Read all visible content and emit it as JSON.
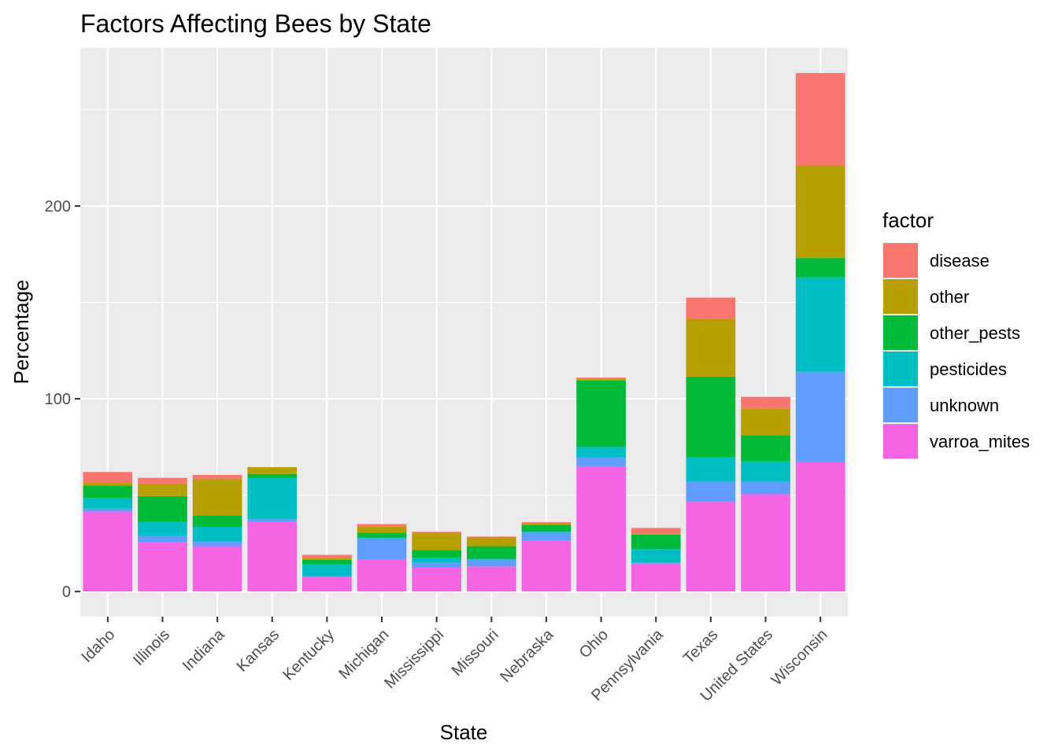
{
  "chart_data": {
    "type": "bar",
    "stacked": true,
    "title": "Factors Affecting Bees by State",
    "xlabel": "State",
    "ylabel": "Percentage",
    "ylim": [
      -13,
      282
    ],
    "yticks": [
      0,
      100,
      200
    ],
    "grid": true,
    "legend_position": "right",
    "legend_title": "factor",
    "legend_order": [
      "disease",
      "other",
      "other_pests",
      "pesticides",
      "unknown",
      "varroa_mites"
    ],
    "stack_order": [
      "varroa_mites",
      "unknown",
      "pesticides",
      "other_pests",
      "other",
      "disease"
    ],
    "colors": {
      "disease": "#F8766D",
      "other": "#B79F00",
      "other_pests": "#00BA38",
      "pesticides": "#00BFC4",
      "unknown": "#619CFF",
      "varroa_mites": "#F564E3",
      "panel_background": "#EBEBEB",
      "grid": "#FFFFFF"
    },
    "categories": [
      "Idaho",
      "Illinois",
      "Indiana",
      "Kansas",
      "Kentucky",
      "Michigan",
      "Mississippi",
      "Missouri",
      "Nebraska",
      "Ohio",
      "Pennsylvania",
      "Texas",
      "United States",
      "Wisconsin"
    ],
    "series": [
      {
        "name": "varroa_mites",
        "values": [
          41.5,
          25.5,
          23.5,
          36,
          7.5,
          16.5,
          12.5,
          13,
          26.5,
          65,
          14.5,
          46.5,
          50.5,
          67
        ]
      },
      {
        "name": "unknown",
        "values": [
          1.5,
          3.5,
          2.5,
          1.5,
          0.5,
          11,
          2.5,
          3.5,
          4,
          4.5,
          0.5,
          10.5,
          6.5,
          47
        ]
      },
      {
        "name": "pesticides",
        "values": [
          5.5,
          7,
          7.5,
          21.5,
          6,
          0.5,
          2.5,
          0.5,
          0.5,
          5.5,
          7,
          12.5,
          10.5,
          49
        ]
      },
      {
        "name": "other_pests",
        "values": [
          6.5,
          13.5,
          6,
          2,
          2.5,
          2.5,
          4,
          6.5,
          3.5,
          34.5,
          7.5,
          42,
          13.5,
          10
        ]
      },
      {
        "name": "other",
        "values": [
          1.5,
          6.5,
          19,
          3.5,
          1,
          3,
          9,
          4.5,
          1,
          1,
          0.5,
          30,
          14,
          48
        ]
      },
      {
        "name": "disease",
        "values": [
          5.5,
          3,
          2,
          0,
          1.5,
          1.5,
          0.5,
          0.5,
          0.5,
          0.5,
          3,
          11,
          6,
          48
        ]
      }
    ]
  }
}
